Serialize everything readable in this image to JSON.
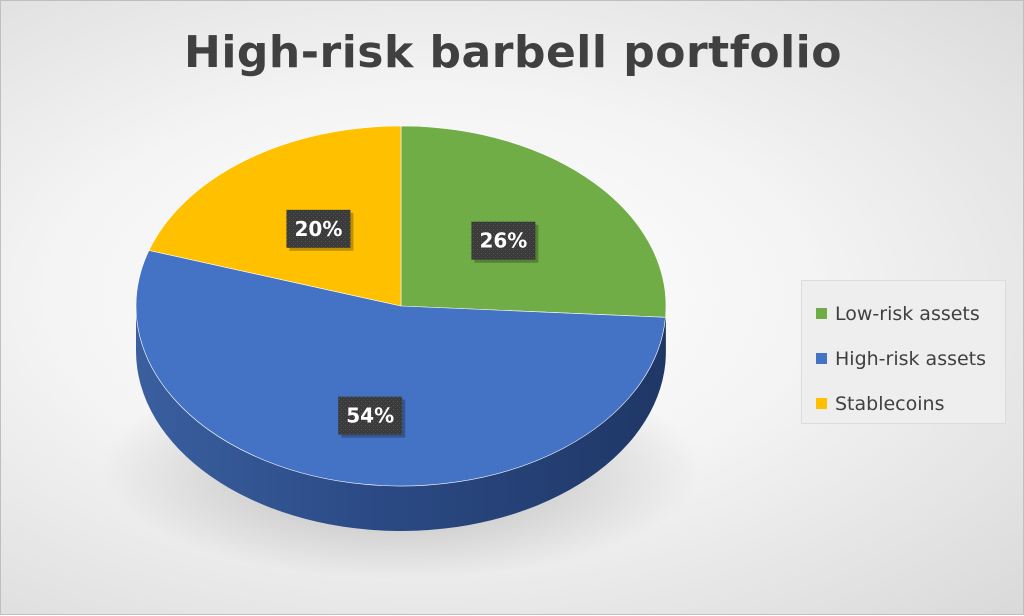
{
  "chart_data": {
    "type": "pie",
    "title": "High-risk barbell portfolio",
    "categories": [
      "Low-risk assets",
      "High-risk assets",
      "Stablecoins"
    ],
    "values": [
      26,
      54,
      20
    ],
    "data_labels": [
      "26%",
      "54%",
      "20%"
    ],
    "colors": [
      "#70ad47",
      "#4472c4",
      "#ffc000"
    ],
    "legend_position": "right",
    "style": "3d-pie"
  }
}
